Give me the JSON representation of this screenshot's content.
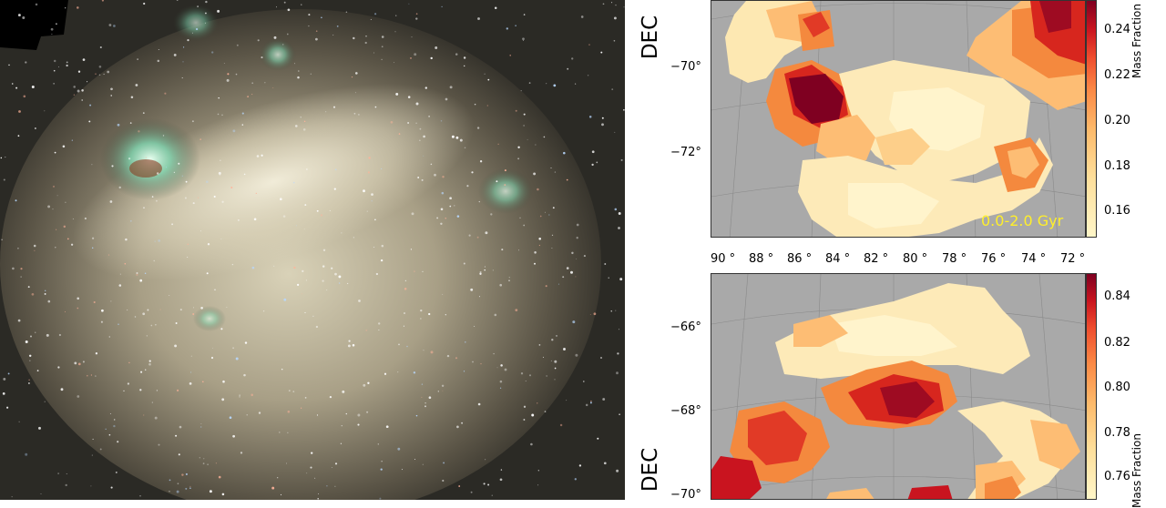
{
  "left_image": {
    "icon": "galaxy-photo"
  },
  "panel_top": {
    "ylabel": "DEC",
    "yticks": [
      "−70°",
      "−72°"
    ],
    "colorbar_label": "Mass Fraction",
    "colorbar_ticks": [
      "0.24",
      "0.22",
      "0.20",
      "0.18",
      "0.16"
    ],
    "age_label": "0.0-2.0 Gyr"
  },
  "ra_ticks": [
    "90 °",
    "88 °",
    "86 °",
    "84 °",
    "82 °",
    "80 °",
    "78 °",
    "76 °",
    "74 °",
    "72 °"
  ],
  "panel_bottom": {
    "ylabel": "DEC",
    "yticks": [
      "−66°",
      "−68°",
      "−70°"
    ],
    "colorbar_label": "Mass Fraction",
    "colorbar_ticks": [
      "0.84",
      "0.82",
      "0.80",
      "0.78",
      "0.76"
    ]
  },
  "colors": {
    "map_background": "#a9a9a9",
    "age_label": "#ffef2a"
  }
}
